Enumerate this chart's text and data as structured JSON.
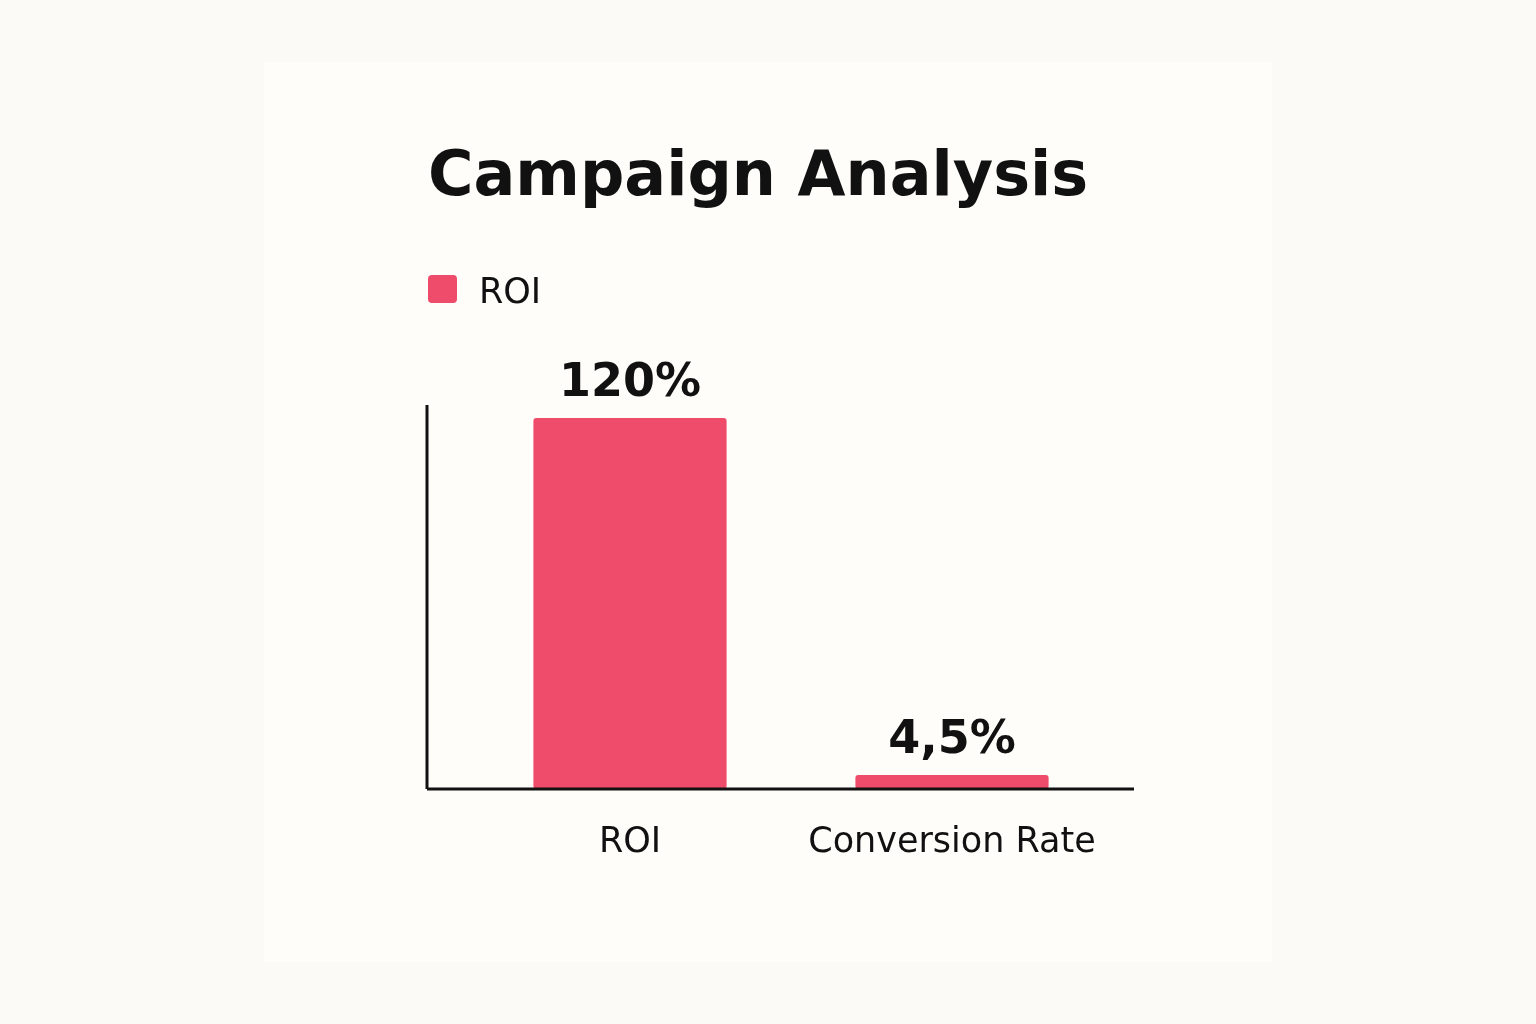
{
  "chart_data": {
    "type": "bar",
    "title": "Campaign Analysis",
    "categories": [
      "ROI",
      "Conversion Rate"
    ],
    "series": [
      {
        "name": "ROI",
        "color": "#ef4b6b",
        "values": [
          120,
          4.5
        ],
        "value_labels": [
          "120%",
          "4,5%"
        ]
      }
    ],
    "legend": "top left"
  }
}
